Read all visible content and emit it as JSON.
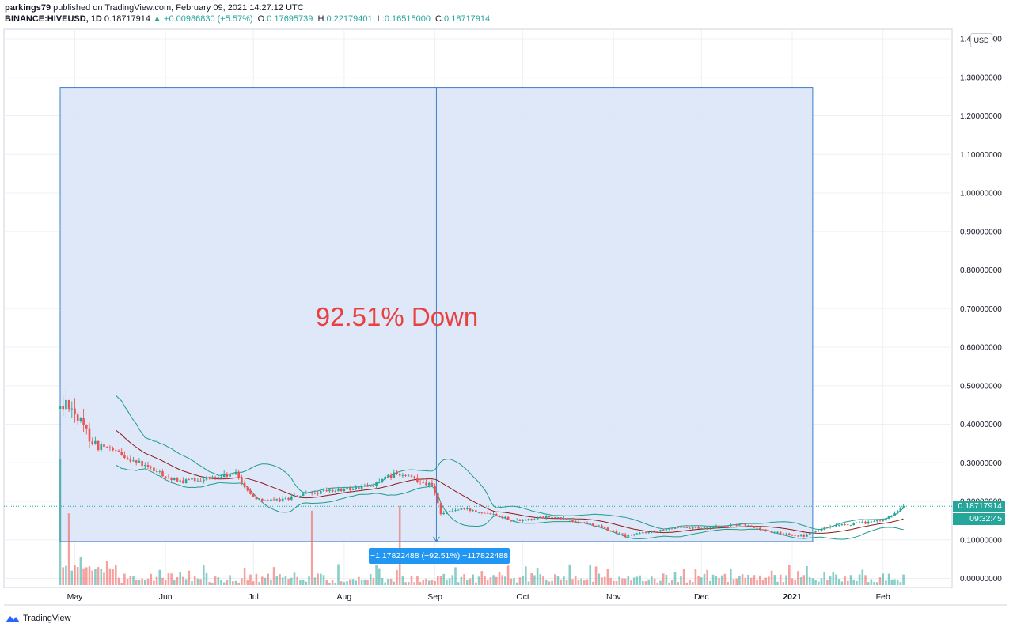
{
  "header": {
    "author": "parkings79",
    "published_text": "published on TradingView.com, February 09, 2021 14:27:12 UTC",
    "symbol": "BINANCE:HIVEUSD, 1D",
    "last": "0.18717914",
    "change": "▲ +0.00986830 (+5.57%)",
    "open_label": "O:",
    "open": "0.17695739",
    "high_label": "H:",
    "high": "0.22179401",
    "low_label": "L:",
    "low": "0.16515000",
    "close_label": "C:",
    "close": "0.18717914"
  },
  "currency_tag": "USD",
  "last_price_tag": "0.18717914",
  "countdown_tag": "09:32:45",
  "annotation_text": "92.51% Down",
  "measure_label": "−1.17822488 (−92.51%) −117822488",
  "footer_brand": "TradingView",
  "colors": {
    "up": "#26a69a",
    "down": "#ef5350",
    "band": "#1e9c8c",
    "basis": "#8b1a1a",
    "box_fill": "#dce6f7",
    "box_edge": "#3d7fc8",
    "annotation": "#e94040",
    "price_tag": "#26a69a"
  },
  "chart_data": {
    "type": "candlestick",
    "symbol": "BINANCE:HIVEUSD",
    "interval": "1D",
    "y_axis": {
      "min": 0,
      "max": 1.4,
      "scale": "linear",
      "ticks": [
        "1.40000000",
        "1.30000000",
        "1.20000000",
        "1.10000000",
        "1.00000000",
        "0.90000000",
        "0.80000000",
        "0.70000000",
        "0.60000000",
        "0.50000000",
        "0.40000000",
        "0.30000000",
        "0.20000000",
        "0.10000000",
        "0.00000000"
      ],
      "tick_values": [
        1.4,
        1.3,
        1.2,
        1.1,
        1.0,
        0.9,
        0.8,
        0.7,
        0.6,
        0.5,
        0.4,
        0.3,
        0.2,
        0.1,
        0.0
      ]
    },
    "x_axis": {
      "start": "2020-04-26",
      "end": "2021-02-15",
      "ticks": [
        {
          "date": "2020-05-01",
          "label": "May"
        },
        {
          "date": "2020-06-01",
          "label": "Jun"
        },
        {
          "date": "2020-07-01",
          "label": "Jul"
        },
        {
          "date": "2020-08-01",
          "label": "Aug"
        },
        {
          "date": "2020-09-01",
          "label": "Sep"
        },
        {
          "date": "2020-10-01",
          "label": "Oct"
        },
        {
          "date": "2020-11-01",
          "label": "Nov"
        },
        {
          "date": "2020-12-01",
          "label": "Dec"
        },
        {
          "date": "2021-01-01",
          "label": "2021"
        },
        {
          "date": "2021-02-01",
          "label": "Feb"
        }
      ]
    },
    "grid": true,
    "price_anchors": [
      [
        "2020-04-26",
        0.44
      ],
      [
        "2020-04-29",
        0.46
      ],
      [
        "2020-05-03",
        0.4
      ],
      [
        "2020-05-08",
        0.35
      ],
      [
        "2020-05-14",
        0.33
      ],
      [
        "2020-05-20",
        0.31
      ],
      [
        "2020-05-28",
        0.28
      ],
      [
        "2020-06-05",
        0.25
      ],
      [
        "2020-06-15",
        0.26
      ],
      [
        "2020-06-25",
        0.27
      ],
      [
        "2020-07-01",
        0.21
      ],
      [
        "2020-07-08",
        0.2
      ],
      [
        "2020-07-20",
        0.22
      ],
      [
        "2020-08-01",
        0.23
      ],
      [
        "2020-08-10",
        0.24
      ],
      [
        "2020-08-18",
        0.27
      ],
      [
        "2020-08-25",
        0.26
      ],
      [
        "2020-08-31",
        0.24
      ],
      [
        "2020-09-03",
        0.17
      ],
      [
        "2020-09-10",
        0.18
      ],
      [
        "2020-09-20",
        0.17
      ],
      [
        "2020-09-28",
        0.15
      ],
      [
        "2020-10-10",
        0.16
      ],
      [
        "2020-10-25",
        0.14
      ],
      [
        "2020-11-05",
        0.11
      ],
      [
        "2020-11-12",
        0.12
      ],
      [
        "2020-11-20",
        0.13
      ],
      [
        "2020-12-01",
        0.13
      ],
      [
        "2020-12-15",
        0.14
      ],
      [
        "2020-12-25",
        0.12
      ],
      [
        "2021-01-05",
        0.11
      ],
      [
        "2021-01-12",
        0.13
      ],
      [
        "2021-01-20",
        0.14
      ],
      [
        "2021-02-01",
        0.15
      ],
      [
        "2021-02-08",
        0.187
      ]
    ],
    "last_close": 0.18717914,
    "bollinger_bands": {
      "length": 20,
      "color": "#1e9c8c",
      "basis_color": "#8b1a1a"
    },
    "volume": {
      "shown": true,
      "colors": [
        "#26a69a",
        "#ef5350"
      ],
      "spikes": [
        "2020-04-26",
        "2020-04-29",
        "2020-07-21",
        "2020-08-20"
      ]
    },
    "measurement": {
      "from_date": "2020-04-26",
      "to_date": "2021-01-08",
      "from_price": 1.2737,
      "to_price": 0.0955,
      "change": -1.17822488,
      "percent": -92.51,
      "label": "−1.17822488 (−92.51%) −117822488"
    },
    "annotations": [
      {
        "text": "92.51% Down",
        "date": "2020-08-19",
        "price": 0.67
      }
    ]
  }
}
